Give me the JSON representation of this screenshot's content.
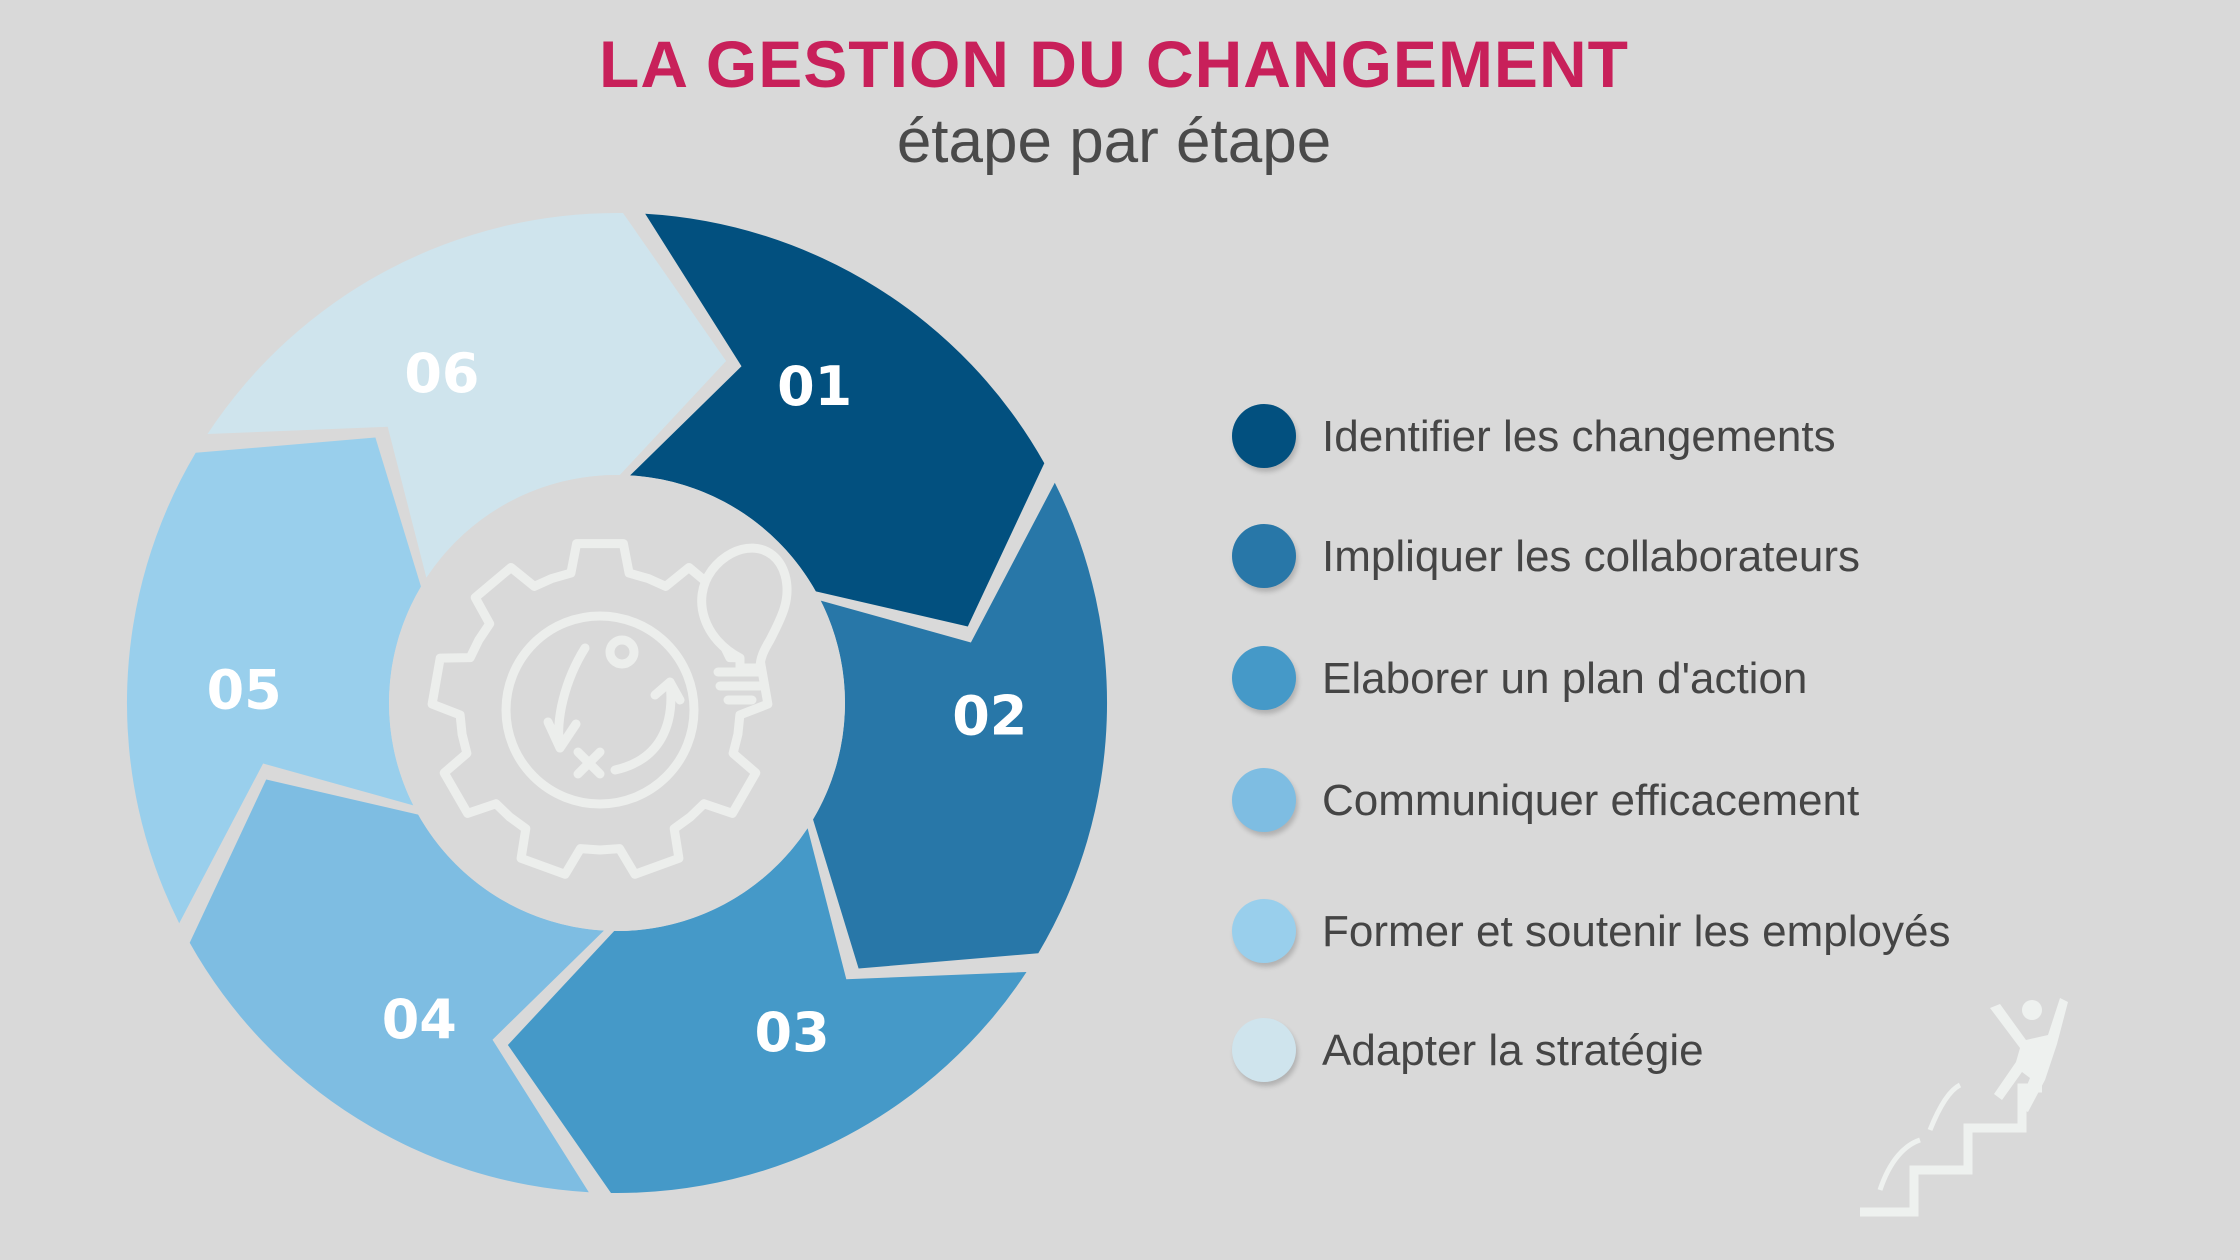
{
  "header": {
    "title": "LA GESTION DU CHANGEMENT",
    "subtitle": "étape par étape"
  },
  "cycle": {
    "segments": [
      {
        "label": "01",
        "color": "#02507f"
      },
      {
        "label": "02",
        "color": "#2877a8"
      },
      {
        "label": "03",
        "color": "#4599c8"
      },
      {
        "label": "04",
        "color": "#7ebde2"
      },
      {
        "label": "05",
        "color": "#99cfec"
      },
      {
        "label": "06",
        "color": "#cfe4ed"
      }
    ],
    "center_icon": "gear-strategy-lightbulb-icon"
  },
  "legend": {
    "items": [
      {
        "text": "Identifier les changements",
        "color": "#02507f"
      },
      {
        "text": "Impliquer les collaborateurs",
        "color": "#2877a8"
      },
      {
        "text": "Elaborer un plan d'action",
        "color": "#4599c8"
      },
      {
        "text": "Communiquer efficacement",
        "color": "#7ebde2"
      },
      {
        "text": "Former et soutenir les employés",
        "color": "#99cfec"
      },
      {
        "text": "Adapter la stratégie",
        "color": "#cfe4ed"
      }
    ]
  },
  "decoration": {
    "icon": "person-climbing-stairs-icon"
  }
}
